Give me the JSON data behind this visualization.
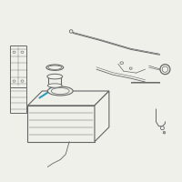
{
  "bg_color": "#f0f0eb",
  "line_color": "#666666",
  "highlight_color": "#2299bb",
  "figsize": [
    2.0,
    2.0
  ],
  "dpi": 100
}
